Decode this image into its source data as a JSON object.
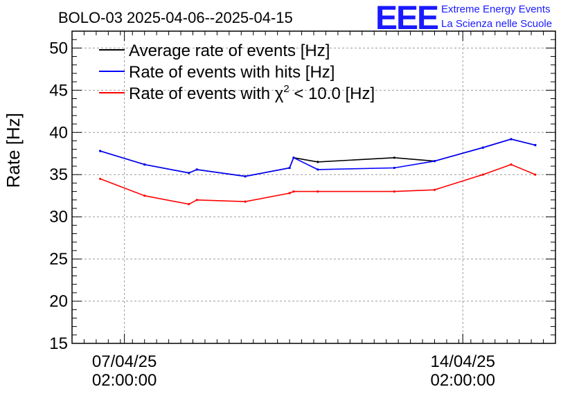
{
  "chart_data": {
    "type": "line",
    "title": "BOLO-03 2025-04-06--2025-04-15",
    "xlabel": "",
    "ylabel": "Rate [Hz]",
    "ylim": [
      15,
      52
    ],
    "yticks": [
      15,
      20,
      25,
      30,
      35,
      40,
      45,
      50
    ],
    "xlim": [
      "2025-04-06T00:00:00",
      "2025-04-16T00:00:00"
    ],
    "xticks": [
      {
        "x": "2025-04-07T02:00:00",
        "date": "07/04/25",
        "time": "02:00:00"
      },
      {
        "x": "2025-04-14T02:00:00",
        "date": "14/04/25",
        "time": "02:00:00"
      }
    ],
    "grid": true,
    "legend_position": "top-left",
    "series": [
      {
        "name": "Average rate of events [Hz]",
        "color": "#000000",
        "x": [
          "2025-04-06T14:00:00",
          "2025-04-07T12:00:00",
          "2025-04-08T10:00:00",
          "2025-04-08T14:00:00",
          "2025-04-09T14:00:00",
          "2025-04-10T12:00:00",
          "2025-04-10T14:00:00",
          "2025-04-11T02:00:00",
          "2025-04-12T16:00:00",
          "2025-04-13T12:00:00",
          "2025-04-14T12:00:00",
          "2025-04-15T02:00:00",
          "2025-04-15T14:00:00"
        ],
        "values": [
          37.8,
          36.2,
          35.2,
          35.6,
          34.8,
          35.8,
          37.0,
          36.5,
          37.0,
          36.6,
          38.2,
          39.2,
          38.5
        ]
      },
      {
        "name": "Rate of events with hits [Hz]",
        "color": "#0000ff",
        "x": [
          "2025-04-06T14:00:00",
          "2025-04-07T12:00:00",
          "2025-04-08T10:00:00",
          "2025-04-08T14:00:00",
          "2025-04-09T14:00:00",
          "2025-04-10T12:00:00",
          "2025-04-10T14:00:00",
          "2025-04-11T02:00:00",
          "2025-04-12T16:00:00",
          "2025-04-13T12:00:00",
          "2025-04-14T12:00:00",
          "2025-04-15T02:00:00",
          "2025-04-15T14:00:00"
        ],
        "values": [
          37.8,
          36.2,
          35.2,
          35.6,
          34.8,
          35.8,
          37.0,
          35.6,
          35.8,
          36.6,
          38.2,
          39.2,
          38.5
        ]
      },
      {
        "name": "Rate of events with χ² < 10.0 [Hz]",
        "color": "#ff0000",
        "x": [
          "2025-04-06T14:00:00",
          "2025-04-07T12:00:00",
          "2025-04-08T10:00:00",
          "2025-04-08T14:00:00",
          "2025-04-09T14:00:00",
          "2025-04-10T12:00:00",
          "2025-04-10T14:00:00",
          "2025-04-11T02:00:00",
          "2025-04-12T16:00:00",
          "2025-04-13T12:00:00",
          "2025-04-14T12:00:00",
          "2025-04-15T02:00:00",
          "2025-04-15T14:00:00"
        ],
        "values": [
          34.5,
          32.5,
          31.5,
          32.0,
          31.8,
          32.8,
          33.0,
          33.0,
          33.0,
          33.2,
          35.0,
          36.2,
          35.0
        ]
      }
    ]
  },
  "logo": {
    "mark": "EEE",
    "line1": "Extreme Energy Events",
    "line2": "La Scienza nelle Scuole"
  },
  "legend_entries": {
    "avg": "Average rate of events [Hz]",
    "hits": "Rate of events with hits [Hz]",
    "chi_prefix": "Rate of events with ",
    "chi_symbol": "χ",
    "chi_exp": "2",
    "chi_suffix": " < 10.0 [Hz]"
  }
}
